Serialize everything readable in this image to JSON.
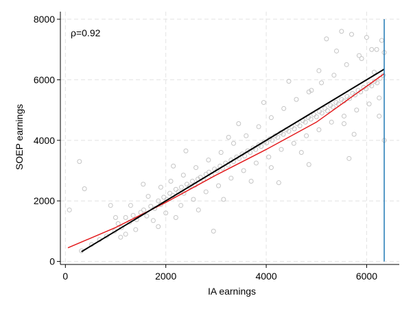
{
  "chart_data": {
    "type": "scatter",
    "title": "",
    "xlabel": "IA earnings",
    "ylabel": "SOEP earnings",
    "annotation": "ρ=0.92",
    "xlim": [
      -100,
      6650
    ],
    "ylim": [
      -100,
      8250
    ],
    "xticks": [
      0,
      2000,
      4000,
      6000
    ],
    "yticks": [
      0,
      2000,
      4000,
      6000,
      8000
    ],
    "grid": true,
    "legend": "none",
    "colors": {
      "points": "#c4c4c4",
      "fit_red": "#e31a1c",
      "fit_black": "#000000",
      "cap_line": "#1f78b4",
      "grid": "#e2e2e2"
    },
    "series": [
      {
        "kind": "scatter",
        "points": [
          [
            320,
            350
          ],
          [
            520,
            560
          ],
          [
            680,
            720
          ],
          [
            820,
            840
          ],
          [
            980,
            1000
          ],
          [
            1050,
            1250
          ],
          [
            1120,
            1120
          ],
          [
            1200,
            1450
          ],
          [
            1280,
            1300
          ],
          [
            1350,
            1520
          ],
          [
            1420,
            1380
          ],
          [
            1500,
            1620
          ],
          [
            1560,
            1700
          ],
          [
            1620,
            1500
          ],
          [
            1700,
            1820
          ],
          [
            1780,
            1750
          ],
          [
            1850,
            2000
          ],
          [
            1900,
            1880
          ],
          [
            1960,
            2120
          ],
          [
            2020,
            2050
          ],
          [
            2080,
            2250
          ],
          [
            2140,
            2180
          ],
          [
            2200,
            2380
          ],
          [
            2250,
            2300
          ],
          [
            2310,
            2450
          ],
          [
            2360,
            2250
          ],
          [
            2420,
            2550
          ],
          [
            2470,
            2480
          ],
          [
            2530,
            2650
          ],
          [
            2580,
            2520
          ],
          [
            2640,
            2720
          ],
          [
            2690,
            2780
          ],
          [
            2750,
            2700
          ],
          [
            2800,
            2880
          ],
          [
            2860,
            2950
          ],
          [
            2910,
            2850
          ],
          [
            2970,
            3050
          ],
          [
            3020,
            3000
          ],
          [
            3080,
            3150
          ],
          [
            3130,
            3080
          ],
          [
            3190,
            3250
          ],
          [
            3240,
            3180
          ],
          [
            3300,
            3350
          ],
          [
            3350,
            3300
          ],
          [
            3410,
            3450
          ],
          [
            3460,
            3400
          ],
          [
            3520,
            3550
          ],
          [
            3570,
            3480
          ],
          [
            3630,
            3650
          ],
          [
            3680,
            3600
          ],
          [
            3740,
            3750
          ],
          [
            3790,
            3700
          ],
          [
            3850,
            3850
          ],
          [
            3900,
            3800
          ],
          [
            3960,
            3950
          ],
          [
            4010,
            3920
          ],
          [
            4070,
            4050
          ],
          [
            4120,
            4000
          ],
          [
            4180,
            4150
          ],
          [
            4230,
            4100
          ],
          [
            4290,
            4250
          ],
          [
            4340,
            4200
          ],
          [
            4400,
            4350
          ],
          [
            4450,
            4300
          ],
          [
            4510,
            4450
          ],
          [
            4560,
            4380
          ],
          [
            4620,
            4550
          ],
          [
            4670,
            4480
          ],
          [
            4730,
            4650
          ],
          [
            4780,
            4600
          ],
          [
            4840,
            4750
          ],
          [
            4890,
            4700
          ],
          [
            4950,
            4850
          ],
          [
            5000,
            4780
          ],
          [
            5060,
            4950
          ],
          [
            5110,
            4900
          ],
          [
            5170,
            5050
          ],
          [
            5220,
            4980
          ],
          [
            5280,
            5150
          ],
          [
            5330,
            5100
          ],
          [
            5390,
            5250
          ],
          [
            5440,
            5200
          ],
          [
            5500,
            5350
          ],
          [
            5550,
            5300
          ],
          [
            5610,
            5450
          ],
          [
            5660,
            5380
          ],
          [
            5720,
            5550
          ],
          [
            5770,
            5500
          ],
          [
            5830,
            5650
          ],
          [
            5880,
            5600
          ],
          [
            5940,
            5750
          ],
          [
            5990,
            5700
          ],
          [
            6050,
            5850
          ],
          [
            6100,
            5800
          ],
          [
            6160,
            5950
          ],
          [
            6210,
            5900
          ],
          [
            6270,
            6050
          ],
          [
            6330,
            6150
          ],
          [
            1000,
            1450
          ],
          [
            1300,
            1850
          ],
          [
            1650,
            2150
          ],
          [
            1900,
            2450
          ],
          [
            2100,
            2650
          ],
          [
            2350,
            2850
          ],
          [
            2600,
            3100
          ],
          [
            2850,
            3350
          ],
          [
            3100,
            3600
          ],
          [
            3350,
            3900
          ],
          [
            3600,
            4150
          ],
          [
            3850,
            4450
          ],
          [
            4100,
            4750
          ],
          [
            4350,
            5050
          ],
          [
            4600,
            5350
          ],
          [
            4850,
            5600
          ],
          [
            5100,
            5900
          ],
          [
            5350,
            6150
          ],
          [
            5600,
            6500
          ],
          [
            5850,
            6800
          ],
          [
            6100,
            7000
          ],
          [
            6300,
            7300
          ],
          [
            1100,
            800
          ],
          [
            1400,
            1050
          ],
          [
            1750,
            1350
          ],
          [
            2000,
            1600
          ],
          [
            2300,
            1850
          ],
          [
            2550,
            2050
          ],
          [
            2800,
            2300
          ],
          [
            3050,
            2500
          ],
          [
            3300,
            2750
          ],
          [
            3550,
            3000
          ],
          [
            3800,
            3250
          ],
          [
            4050,
            3450
          ],
          [
            4300,
            3700
          ],
          [
            4550,
            3900
          ],
          [
            4800,
            4150
          ],
          [
            5050,
            4350
          ],
          [
            5300,
            4600
          ],
          [
            5550,
            4800
          ],
          [
            5800,
            5000
          ],
          [
            6050,
            5200
          ],
          [
            6250,
            5400
          ],
          [
            5500,
            7600
          ],
          [
            5700,
            7500
          ],
          [
            6000,
            7400
          ],
          [
            6200,
            7000
          ],
          [
            5200,
            7350
          ],
          [
            6350,
            6900
          ],
          [
            5900,
            6700
          ],
          [
            5400,
            6950
          ],
          [
            280,
            3300
          ],
          [
            380,
            2400
          ],
          [
            80,
            1700
          ],
          [
            2950,
            1000
          ],
          [
            4850,
            3200
          ],
          [
            4250,
            2600
          ],
          [
            5650,
            3400
          ],
          [
            3150,
            2050
          ],
          [
            6350,
            4000
          ],
          [
            2400,
            3650
          ],
          [
            1550,
            2550
          ],
          [
            3700,
            2650
          ],
          [
            4450,
            5950
          ],
          [
            5050,
            6300
          ],
          [
            2150,
            3150
          ],
          [
            3450,
            4550
          ],
          [
            4700,
            3600
          ],
          [
            5750,
            4200
          ],
          [
            1850,
            1150
          ],
          [
            6250,
            4800
          ],
          [
            900,
            1850
          ],
          [
            2650,
            1700
          ],
          [
            3950,
            5250
          ],
          [
            4100,
            3100
          ],
          [
            5550,
            4550
          ],
          [
            3250,
            4100
          ],
          [
            1200,
            900
          ],
          [
            2200,
            1450
          ],
          [
            4900,
            5650
          ],
          [
            6150,
            6250
          ]
        ]
      },
      {
        "kind": "line",
        "name": "",
        "points": [
          [
            50,
            450
          ],
          [
            1000,
            1120
          ],
          [
            2000,
            1950
          ],
          [
            3000,
            2850
          ],
          [
            4000,
            3700
          ],
          [
            5000,
            4600
          ],
          [
            5800,
            5550
          ],
          [
            6350,
            6200
          ]
        ]
      },
      {
        "kind": "line",
        "name": "",
        "points": [
          [
            320,
            320
          ],
          [
            6350,
            6350
          ]
        ]
      },
      {
        "kind": "vline",
        "name": "",
        "x": 6350,
        "y_range": [
          0,
          8000
        ]
      }
    ]
  }
}
